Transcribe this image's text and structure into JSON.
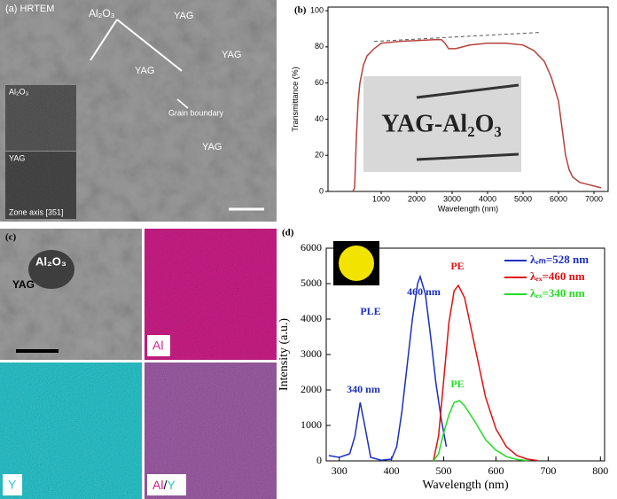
{
  "images": {
    "a": {
      "panel_label": "(a) HRTEM",
      "labels": [
        "Al₂O₃",
        "YAG",
        "YAG",
        "YAG",
        "YAG",
        "Grain boundary"
      ],
      "inset_labels": [
        "Al₂O₃",
        "YAG",
        "Zone axis [351]"
      ]
    },
    "c": {
      "panel_label": "(c)",
      "tem_labels": [
        "Al₂O₃",
        "YAG"
      ],
      "map_al": "Al",
      "map_y": "Y",
      "map_overlay": [
        "Al",
        "/",
        "Y"
      ]
    }
  },
  "chart_data": [
    {
      "type": "line",
      "panel_label": "(b)",
      "x_label": "Wavelength (nm)",
      "y_label": "Transmittance (%)",
      "inset_label": "YAG-Al₂O₃",
      "xlim": [
        -500,
        7400
      ],
      "xticks": [
        1000,
        2000,
        3000,
        4000,
        5000,
        6000,
        7000
      ],
      "ylim": [
        0,
        102
      ],
      "yticks": [
        0,
        20,
        40,
        60,
        80,
        100
      ],
      "series": [
        {
          "color": "#b5413b",
          "x": [
            200,
            250,
            300,
            350,
            400,
            500,
            600,
            800,
            1000,
            1500,
            2000,
            2500,
            2700,
            2800,
            2900,
            3100,
            3500,
            4000,
            4500,
            5000,
            5300,
            5600,
            5800,
            6000,
            6100,
            6200,
            6300,
            6400,
            6600,
            6800,
            7200
          ],
          "values": [
            0,
            2,
            30,
            50,
            60,
            70,
            75,
            79,
            82,
            83,
            83.5,
            84,
            84,
            82,
            79,
            79,
            81,
            82,
            82,
            81,
            78,
            72,
            63,
            50,
            35,
            20,
            12,
            8,
            5,
            4,
            2
          ]
        },
        {
          "color": "#555555",
          "dashed": true,
          "x": [
            800,
            5500
          ],
          "values": [
            83,
            88
          ]
        }
      ]
    },
    {
      "type": "line",
      "panel_label": "(d)",
      "x_label": "Wavelength (nm)",
      "y_label": "Intensity (a.u.)",
      "xlim": [
        275,
        808
      ],
      "xticks": [
        300,
        400,
        500,
        600,
        700,
        800
      ],
      "ylim": [
        0,
        6000
      ],
      "yticks": [
        0,
        1000,
        2000,
        3000,
        4000,
        5000,
        6000
      ],
      "annotations": [
        "460 nm",
        "PLE",
        "340 nm",
        "PE",
        "PE"
      ],
      "series": [
        {
          "name": "λₑₘ=528 nm",
          "color": "#1a2fc0",
          "x": [
            280,
            300,
            320,
            330,
            340,
            350,
            360,
            380,
            400,
            410,
            420,
            430,
            440,
            450,
            455,
            465,
            475,
            485,
            495,
            505
          ],
          "values": [
            150,
            100,
            200,
            700,
            1650,
            900,
            100,
            20,
            50,
            400,
            1400,
            2700,
            4000,
            5000,
            5200,
            4700,
            3500,
            2200,
            1200,
            400
          ]
        },
        {
          "name": "λₑₓ=460 nm",
          "color": "#e01010",
          "x": [
            480,
            490,
            500,
            510,
            520,
            528,
            540,
            560,
            580,
            600,
            620,
            640,
            660,
            680
          ],
          "values": [
            0,
            700,
            2300,
            3900,
            4800,
            4950,
            4600,
            3200,
            1800,
            900,
            400,
            150,
            50,
            10
          ]
        },
        {
          "name": "λₑₓ=340 nm",
          "color": "#22dd22",
          "x": [
            480,
            490,
            500,
            510,
            520,
            530,
            540,
            560,
            580,
            600,
            620,
            640,
            660
          ],
          "values": [
            0,
            200,
            800,
            1300,
            1650,
            1700,
            1550,
            1100,
            600,
            300,
            120,
            40,
            10
          ]
        }
      ]
    }
  ]
}
